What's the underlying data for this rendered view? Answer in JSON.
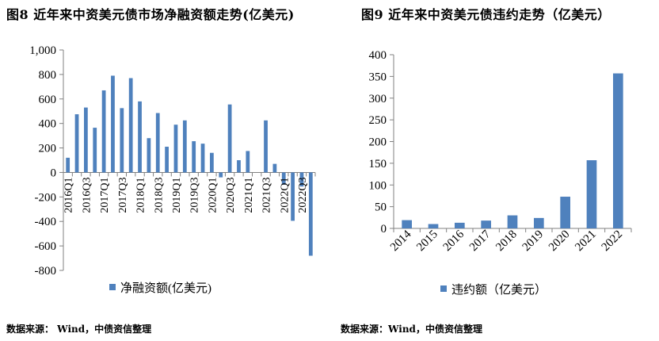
{
  "charts": {
    "left": {
      "title": "图8  近年来中资美元债市场净融资额走势(亿美元)",
      "source": "数据来源：  Wind，中债资信整理"
    },
    "right": {
      "title": "图9  近年来中资美元债违约走势（亿美元）",
      "source": "数据来源：Wind，中债资信整理"
    }
  },
  "colors": {
    "bar": "#4f81bd",
    "axis": "#808080"
  },
  "chart_data": [
    {
      "type": "bar",
      "title": "图8  近年来中资美元债市场净融资额走势(亿美元)",
      "categories": [
        "2016Q1",
        "2016Q2",
        "2016Q3",
        "2016Q4",
        "2017Q1",
        "2017Q2",
        "2017Q3",
        "2017Q4",
        "2018Q1",
        "2018Q2",
        "2018Q3",
        "2018Q4",
        "2019Q1",
        "2019Q2",
        "2019Q3",
        "2019Q4",
        "2020Q1",
        "2020Q2",
        "2020Q3",
        "2020Q4",
        "2021Q1",
        "2021Q2",
        "2021Q3",
        "2021Q4",
        "2022Q1",
        "2022Q2",
        "2022Q3",
        "2022Q4"
      ],
      "tick_labels": [
        "2016Q1",
        "2016Q3",
        "2017Q1",
        "2017Q3",
        "2018Q1",
        "2018Q3",
        "2019Q1",
        "2019Q3",
        "2020Q1",
        "2020Q3",
        "2021Q1",
        "2021Q3",
        "2022Q1",
        "2022Q3"
      ],
      "series": [
        {
          "name": "净融资额(亿美元)",
          "values": [
            120,
            475,
            530,
            365,
            670,
            790,
            525,
            770,
            580,
            280,
            485,
            210,
            390,
            425,
            255,
            235,
            160,
            -40,
            555,
            100,
            175,
            0,
            425,
            70,
            -100,
            -395,
            -115,
            -680
          ]
        }
      ],
      "yticks": [
        "1,000",
        "800",
        "600",
        "400",
        "200",
        "0",
        "-200",
        "-400",
        "-600",
        "-800"
      ],
      "ylim": [
        -800,
        1000
      ],
      "legend": "bottom",
      "grid": false
    },
    {
      "type": "bar",
      "title": "图9  近年来中资美元债违约走势（亿美元）",
      "categories": [
        "2014",
        "2015",
        "2016",
        "2017",
        "2018",
        "2019",
        "2020",
        "2021",
        "2022"
      ],
      "series": [
        {
          "name": "违约额（亿美元）",
          "values": [
            19,
            10,
            13,
            18,
            30,
            24,
            73,
            157,
            357
          ]
        }
      ],
      "yticks": [
        "400",
        "350",
        "300",
        "250",
        "200",
        "150",
        "100",
        "50",
        "0"
      ],
      "ylim": [
        0,
        400
      ],
      "legend": "bottom",
      "grid": false
    }
  ]
}
